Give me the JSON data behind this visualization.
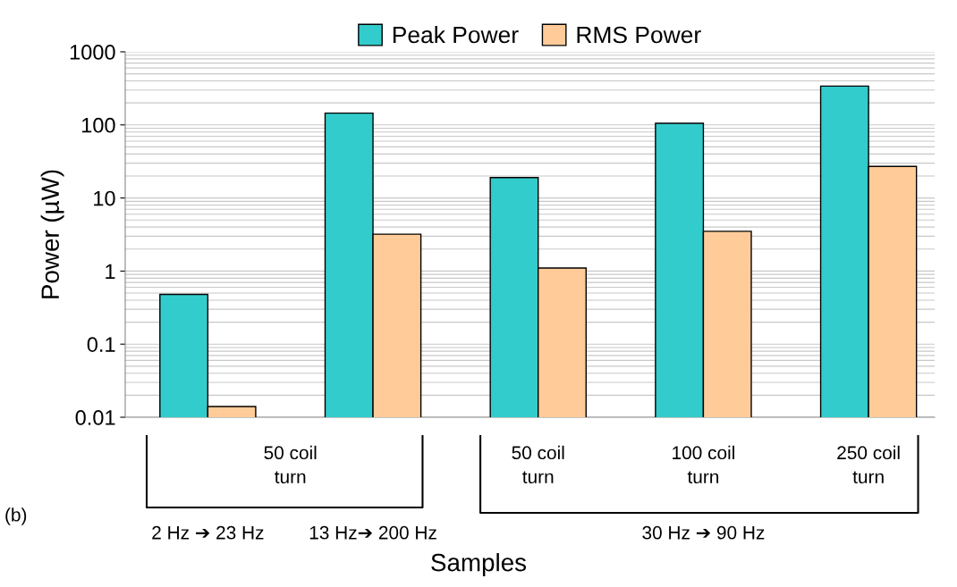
{
  "chart_data": {
    "type": "bar",
    "ylabel": "Power (µW)",
    "xlabel": "Samples",
    "categories": [
      "2 Hz ➔ 23 Hz",
      "13 Hz➔ 200 Hz",
      "50 coil\nturn",
      "100 coil\nturn",
      "250 coil\nturn"
    ],
    "series": [
      {
        "name": "Peak Power",
        "color": "#33cccc",
        "values": [
          0.48,
          145,
          19,
          105,
          340
        ]
      },
      {
        "name": "RMS Power",
        "color": "#ffcc99",
        "values": [
          0.014,
          3.2,
          1.1,
          3.5,
          27
        ]
      }
    ],
    "log": "y",
    "ylim": [
      0.01,
      1000
    ],
    "yticks": [
      0.01,
      0.1,
      1,
      10,
      100,
      1000
    ],
    "grid": "y",
    "legend": "top",
    "annotations": [
      "50 coil\nturn",
      "30 Hz ➔ 90 Hz",
      "(b)"
    ]
  }
}
